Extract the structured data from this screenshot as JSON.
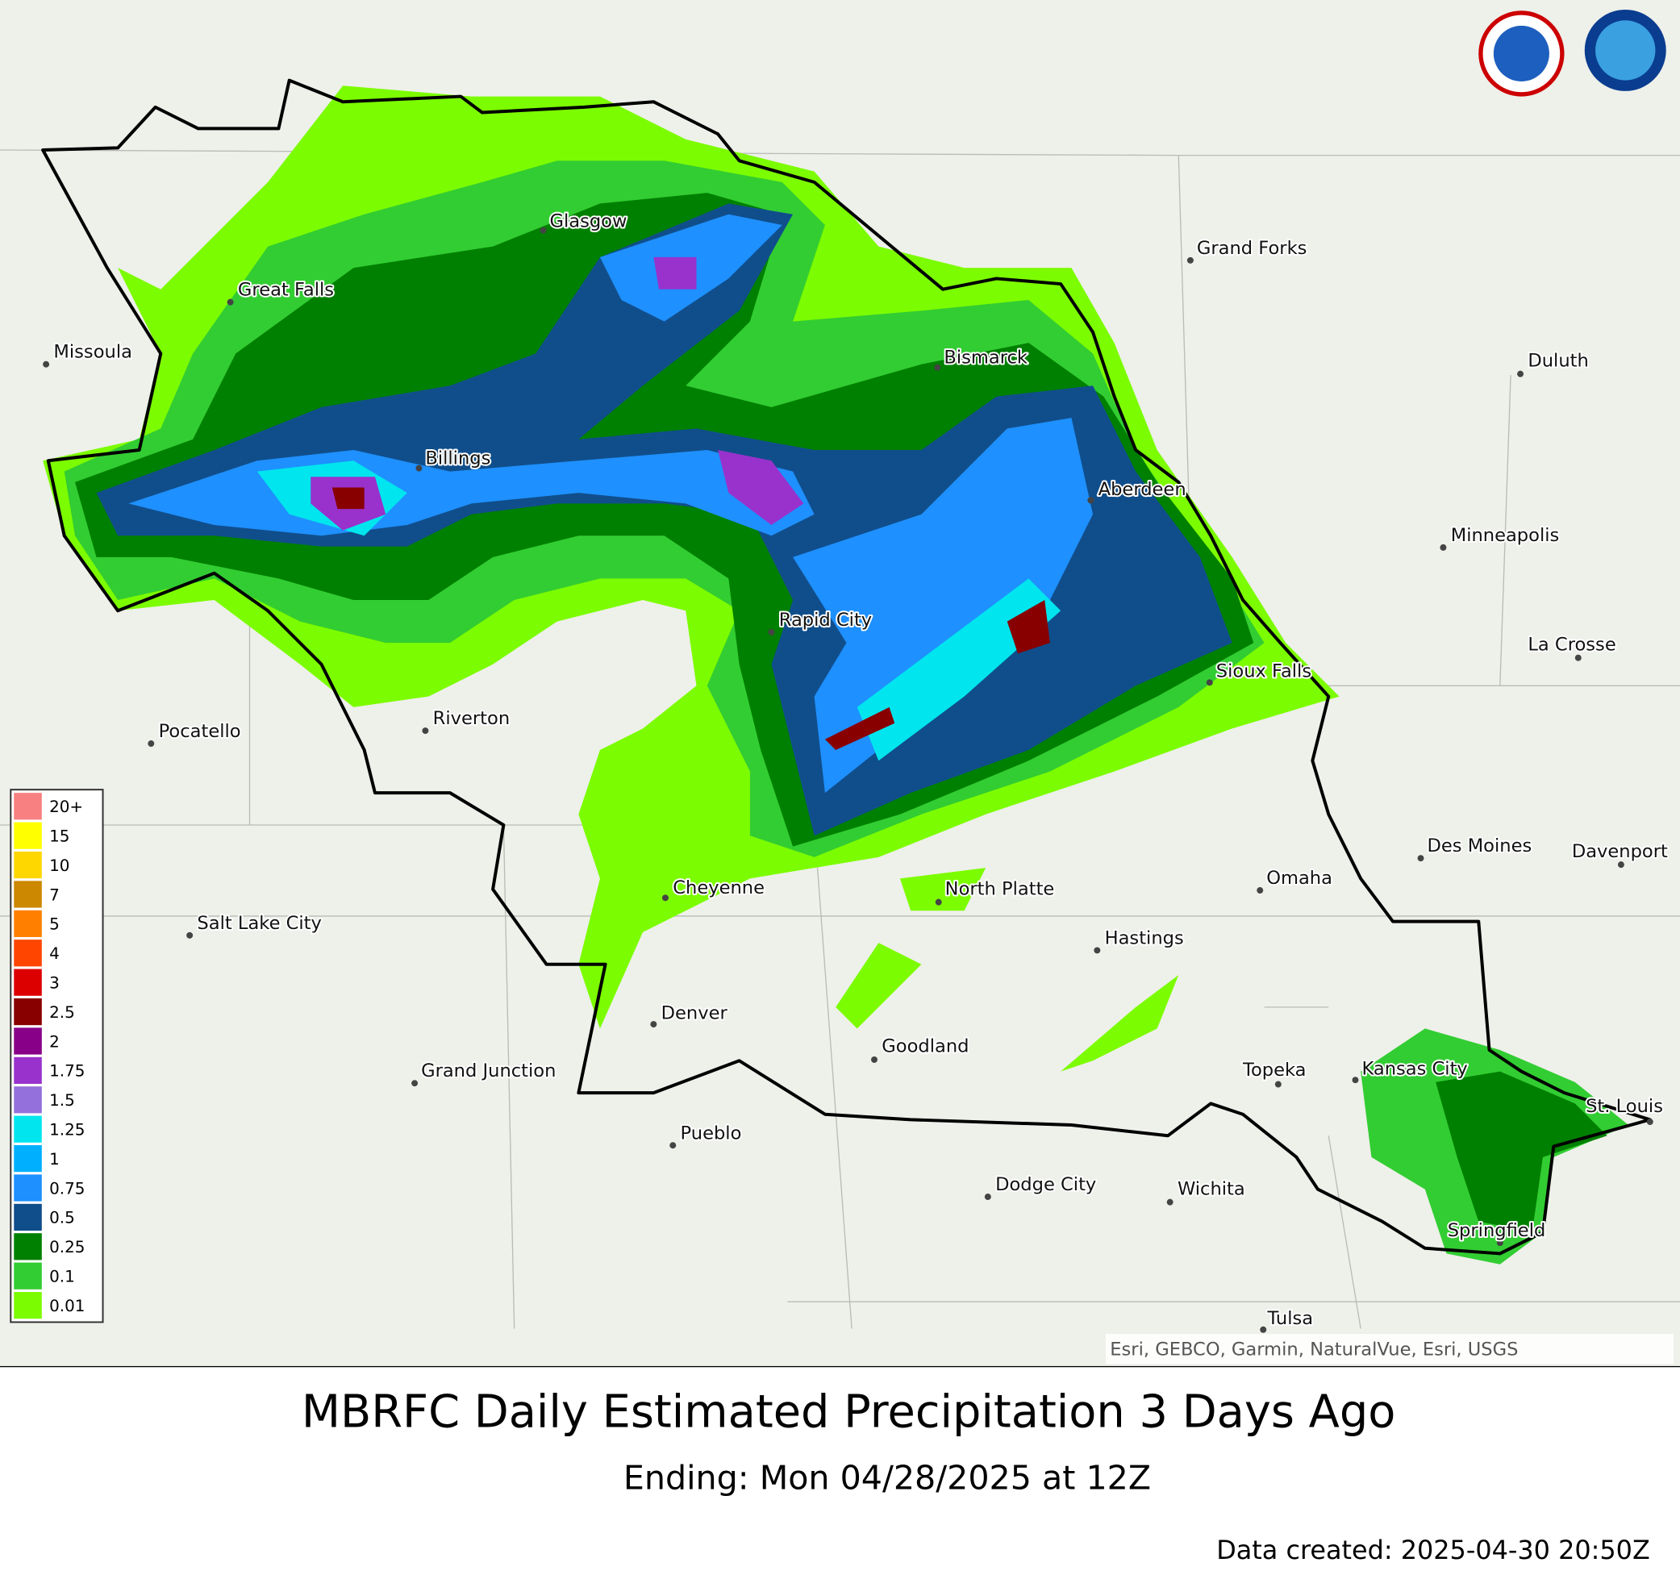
{
  "title": "MBRFC Daily Estimated Precipitation 3 Days Ago",
  "subtitle": "Ending: Mon 04/28/2025 at 12Z",
  "data_created": "Data created: 2025-04-30 20:50Z",
  "attribution": "Esri, GEBCO, Garmin, NaturalVue, Esri, USGS",
  "legend": [
    {
      "label": "20+",
      "color": "#f88080"
    },
    {
      "label": "15",
      "color": "#ffff00"
    },
    {
      "label": "10",
      "color": "#ffd700"
    },
    {
      "label": "7",
      "color": "#cc8800"
    },
    {
      "label": "5",
      "color": "#ff8000"
    },
    {
      "label": "4",
      "color": "#ff4500"
    },
    {
      "label": "3",
      "color": "#dd0000"
    },
    {
      "label": "2.5",
      "color": "#880000"
    },
    {
      "label": "2",
      "color": "#880088"
    },
    {
      "label": "1.75",
      "color": "#9932cc"
    },
    {
      "label": "1.5",
      "color": "#9370db"
    },
    {
      "label": "1.25",
      "color": "#00e5ee"
    },
    {
      "label": "1",
      "color": "#00b0ff"
    },
    {
      "label": "0.75",
      "color": "#1e90ff"
    },
    {
      "label": "0.5",
      "color": "#104e8b"
    },
    {
      "label": "0.25",
      "color": "#008000"
    },
    {
      "label": "0.1",
      "color": "#32cd32"
    },
    {
      "label": "0.01",
      "color": "#7cfc00"
    }
  ],
  "cities": [
    "Glasgow",
    "Great Falls",
    "Missoula",
    "Grand Forks",
    "Bismarck",
    "Duluth",
    "Billings",
    "Aberdeen",
    "Minneapolis",
    "Rapid City",
    "La Crosse",
    "Sioux Falls",
    "Riverton",
    "Pocatello",
    "Des Moines",
    "Davenport",
    "Omaha",
    "Cheyenne",
    "North Platte",
    "Salt Lake City",
    "Hastings",
    "Denver",
    "Goodland",
    "Grand Junction",
    "Topeka",
    "Kansas City",
    "St. Louis",
    "Pueblo",
    "Dodge City",
    "Wichita",
    "Springfield",
    "Tulsa"
  ]
}
